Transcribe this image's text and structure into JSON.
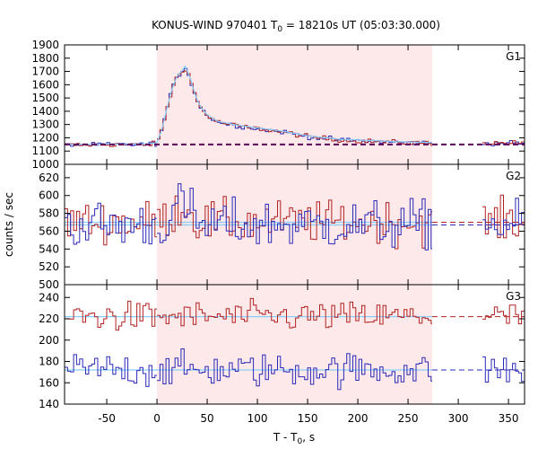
{
  "chart_data": {
    "type": "line",
    "title": {
      "prefix": "KONUS-WIND 970401 T",
      "sub": "0",
      "suffix": " = 18210s UT (05:03:30.000)"
    },
    "xlabel": {
      "main": "T - T",
      "sub": "0",
      "suffix": ", s"
    },
    "ylabel": "counts / sec",
    "xlim": [
      -92,
      366
    ],
    "xticks": [
      -50,
      0,
      50,
      100,
      150,
      200,
      250,
      300,
      350
    ],
    "shaded_interval": [
      0,
      274
    ],
    "colors": {
      "series_a": "#b22222",
      "series_b": "#2a2ab8",
      "model": "#87cefa",
      "shade": "#fde8ea",
      "background_dash": "#5a005a"
    },
    "panels": [
      {
        "name": "G1",
        "ylim": [
          1000,
          1900
        ],
        "yticks": [
          1000,
          1100,
          1200,
          1300,
          1400,
          1500,
          1600,
          1700,
          1800,
          1900
        ],
        "background_level": 1150
      },
      {
        "name": "G2",
        "ylim": [
          500,
          635
        ],
        "yticks": [
          500,
          520,
          540,
          560,
          580,
          600,
          620
        ],
        "background_levels": [
          570,
          567
        ]
      },
      {
        "name": "G3",
        "ylim": [
          140,
          252
        ],
        "yticks": [
          140,
          160,
          180,
          200,
          220,
          240
        ],
        "background_levels": [
          222,
          172
        ]
      }
    ],
    "g1_peak": {
      "x": [
        -92,
        -10,
        0,
        5,
        10,
        15,
        20,
        25,
        28,
        30,
        33,
        36,
        40,
        45,
        50,
        60,
        80,
        100,
        125,
        150,
        180,
        210,
        240,
        274
      ],
      "y": [
        1145,
        1150,
        1158,
        1260,
        1420,
        1560,
        1660,
        1700,
        1735,
        1700,
        1650,
        1570,
        1480,
        1410,
        1370,
        1320,
        1290,
        1270,
        1245,
        1210,
        1185,
        1175,
        1165,
        1160
      ]
    },
    "gap": [
      275,
      324
    ]
  }
}
